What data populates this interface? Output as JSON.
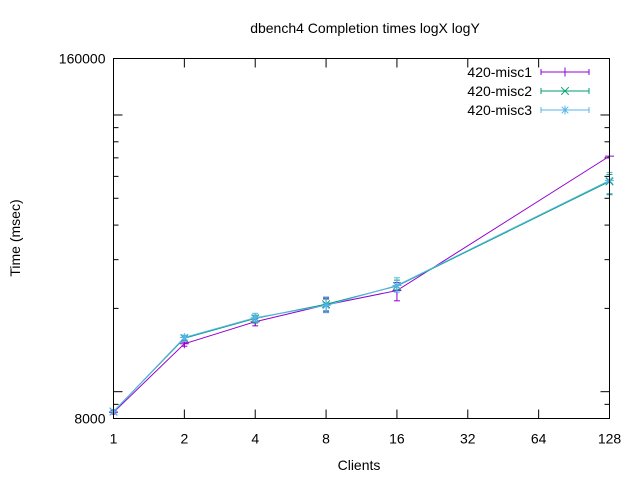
{
  "chart_data": {
    "type": "line",
    "title": "dbench4 Completion times logX logY",
    "xlabel": "Clients",
    "ylabel": "Time (msec)",
    "x_scale": "log2",
    "y_scale": "log",
    "x": [
      1,
      2,
      4,
      8,
      16,
      128
    ],
    "xlim": [
      1,
      128
    ],
    "ylim": [
      8000,
      160000
    ],
    "x_ticks": [
      "1",
      "2",
      "4",
      "8",
      "16",
      "32",
      "64",
      "128"
    ],
    "y_ticks": [
      "8000",
      "160000"
    ],
    "legend_position": "top-right",
    "series": [
      {
        "name": "420-misc1",
        "color": "#9400d3",
        "marker": "plus",
        "values": [
          8420,
          14900,
          17900,
          20600,
          23200,
          71000
        ],
        "err_low": [
          8300,
          14600,
          17300,
          19400,
          21300,
          71000
        ],
        "err_high": [
          8540,
          15100,
          18400,
          21800,
          24800,
          71000
        ]
      },
      {
        "name": "420-misc2",
        "color": "#009e73",
        "marker": "cross",
        "values": [
          8480,
          15600,
          18400,
          20700,
          24100,
          57500
        ],
        "err_low": [
          8360,
          15300,
          17700,
          19600,
          23300,
          51500
        ],
        "err_high": [
          8620,
          15900,
          18900,
          21600,
          25300,
          61000
        ]
      },
      {
        "name": "420-misc3",
        "color": "#56b4e9",
        "marker": "star",
        "values": [
          8470,
          15700,
          18500,
          20500,
          24200,
          58000
        ],
        "err_low": [
          8350,
          15400,
          17900,
          19300,
          22900,
          52000
        ],
        "err_high": [
          8610,
          16000,
          19200,
          22000,
          25800,
          62000
        ]
      }
    ]
  }
}
